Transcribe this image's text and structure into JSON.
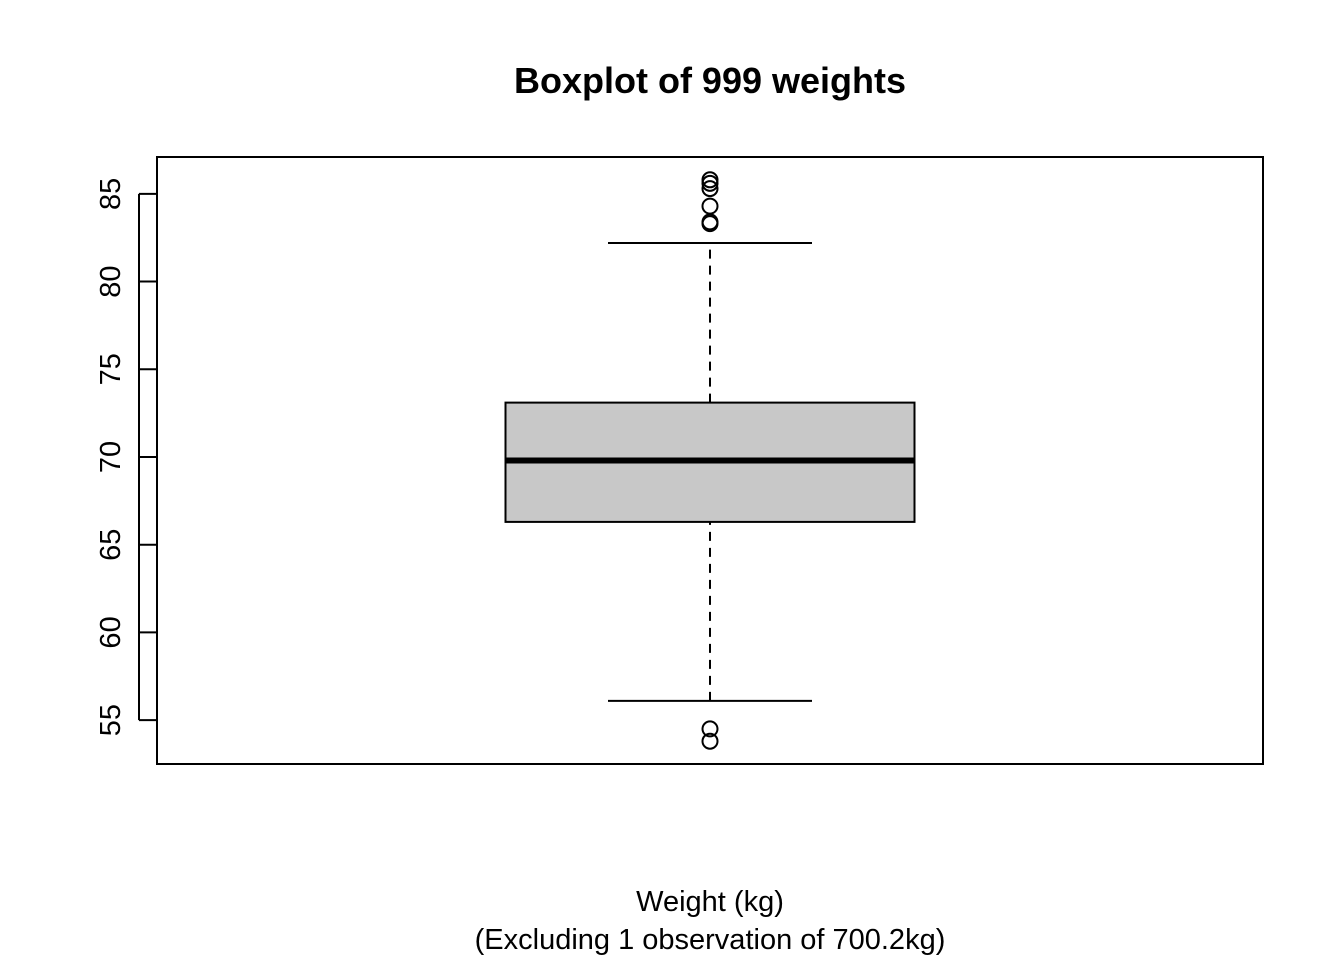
{
  "chart_data": {
    "type": "box",
    "title": "Boxplot of 999 weights",
    "xlabel": "Weight (kg)",
    "xlabel_note": "(Excluding 1 observation of 700.2kg)",
    "ylabel": "",
    "ylim": [
      52.5,
      87.1
    ],
    "y_ticks": [
      55,
      60,
      65,
      70,
      75,
      80,
      85
    ],
    "y_tick_labels": [
      "55",
      "60",
      "65",
      "70",
      "75",
      "80",
      "85"
    ],
    "grid": false,
    "box": {
      "whisker_low": 56.1,
      "q1": 66.3,
      "median": 69.8,
      "q3": 73.1,
      "whisker_high": 82.2,
      "fill_color": "#c8c8c8",
      "outliers": [
        53.8,
        54.5,
        83.3,
        83.4,
        84.3,
        85.3,
        85.6,
        85.8
      ]
    }
  }
}
